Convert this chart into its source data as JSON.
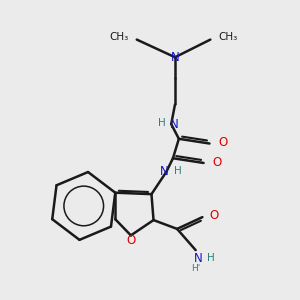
{
  "bg_color": "#ebebeb",
  "bond_color": "#1a1a1a",
  "N_color": "#1414c8",
  "O_color": "#e00000",
  "NH_color": "#2a8080",
  "bond_width": 1.8,
  "fig_width": 3.0,
  "fig_height": 3.0,
  "dpi": 100,
  "xlim": [
    0,
    10
  ],
  "ylim": [
    0,
    10
  ]
}
